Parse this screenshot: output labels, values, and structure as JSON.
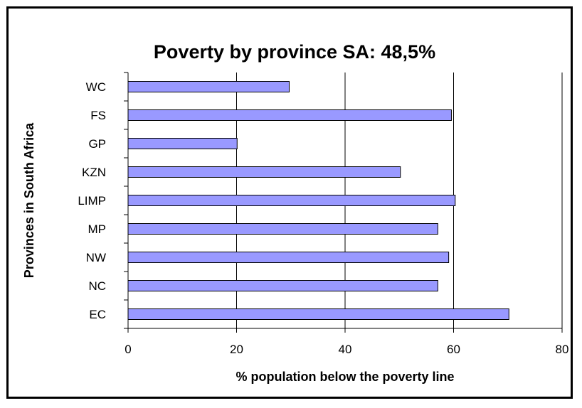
{
  "chart_data": {
    "type": "bar",
    "orientation": "horizontal",
    "title": "Poverty by province SA: 48,5%",
    "xlabel": "% population below the poverty line",
    "ylabel": "Provinces in South Africa",
    "categories": [
      "WC",
      "FS",
      "GP",
      "KZN",
      "LIMP",
      "MP",
      "NW",
      "NC",
      "EC"
    ],
    "values": [
      29.7,
      59.6,
      20.1,
      50.2,
      60.3,
      57.1,
      59.1,
      57.1,
      70.2
    ],
    "xlim": [
      0,
      80
    ],
    "xticks": [
      0,
      20,
      40,
      60,
      80
    ],
    "grid": "vertical",
    "legend": "none",
    "bar_color": "#9999FF",
    "bar_edge_color": "#000000"
  }
}
